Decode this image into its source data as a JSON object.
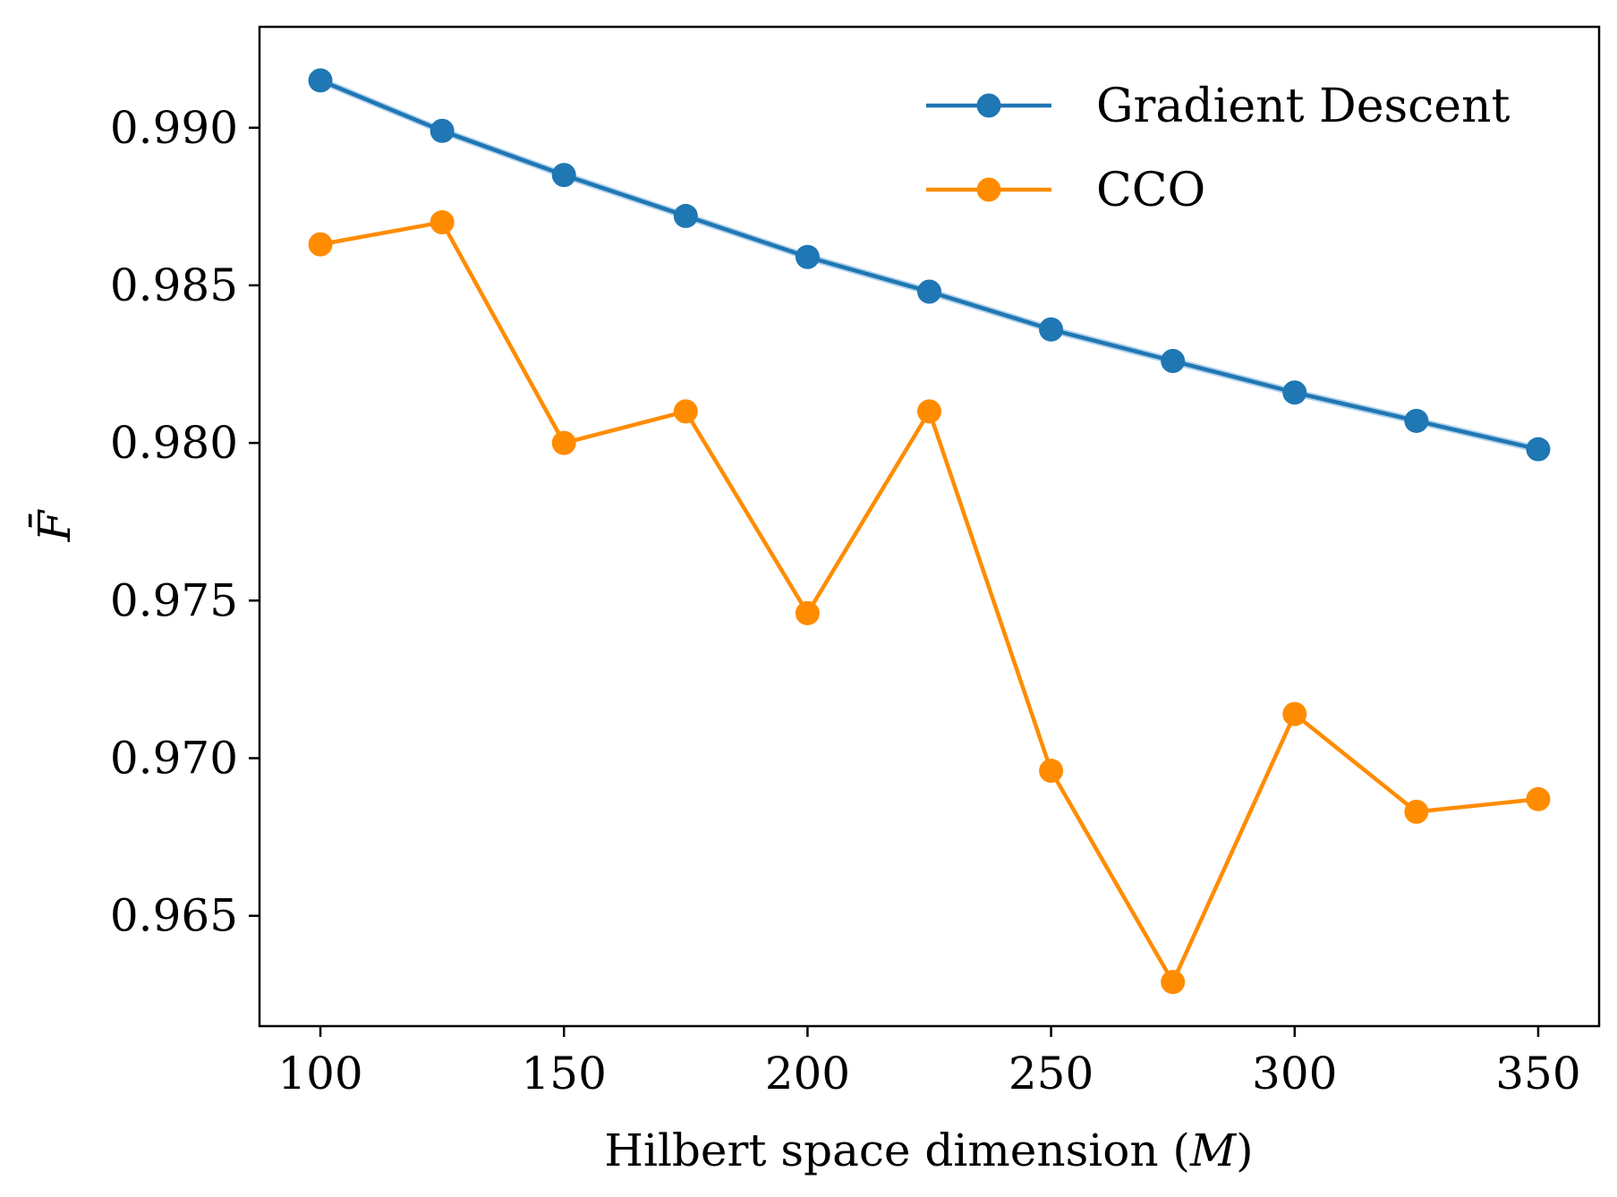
{
  "chart_data": {
    "type": "line",
    "title": "",
    "xlabel": "Hilbert space dimension (M)",
    "xlabel_main": "Hilbert space dimension (",
    "xlabel_var": "M",
    "xlabel_close": ")",
    "ylabel": "F̄",
    "x": [
      100,
      125,
      150,
      175,
      200,
      225,
      250,
      275,
      300,
      325,
      350
    ],
    "xlim": [
      87.5,
      362.5
    ],
    "ylim": [
      0.9615,
      0.9932
    ],
    "xticks": [
      100,
      150,
      200,
      250,
      300,
      350
    ],
    "xtick_labels": [
      "100",
      "150",
      "200",
      "250",
      "300",
      "350"
    ],
    "yticks": [
      0.965,
      0.97,
      0.975,
      0.98,
      0.985,
      0.99
    ],
    "ytick_labels": [
      "0.965",
      "0.970",
      "0.975",
      "0.980",
      "0.985",
      "0.990"
    ],
    "grid": false,
    "legend_position": "top-right",
    "series": [
      {
        "name": "Gradient Descent",
        "color": "#1f77b4",
        "band_color": "#9ec5e6",
        "marker": "circle",
        "values": [
          0.9915,
          0.9899,
          0.9885,
          0.9872,
          0.9859,
          0.9848,
          0.9836,
          0.9826,
          0.9816,
          0.9807,
          0.9798
        ],
        "band_halfwidth": 0.00012
      },
      {
        "name": "CCO",
        "color": "#ff8c00",
        "marker": "circle",
        "values": [
          0.9863,
          0.987,
          0.98,
          0.981,
          0.9746,
          0.981,
          0.9696,
          0.9629,
          0.9714,
          0.9683,
          0.9687
        ]
      }
    ]
  }
}
